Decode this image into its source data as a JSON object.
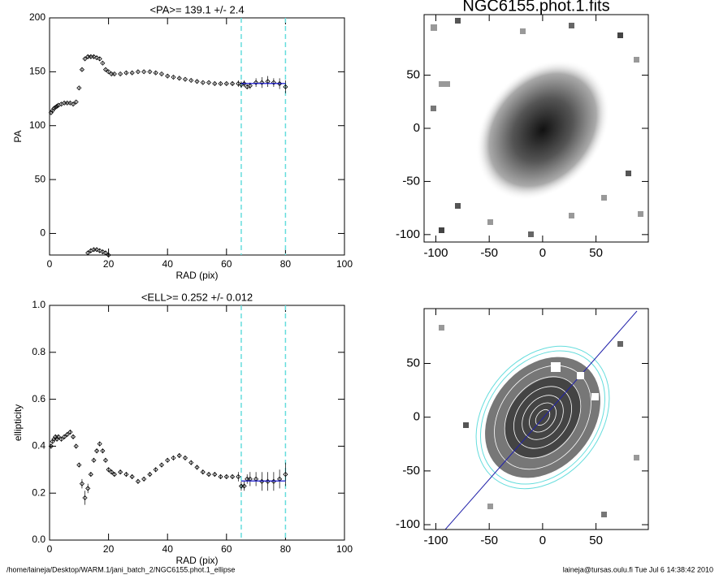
{
  "chart_data": [
    {
      "type": "profile",
      "title": "<PA>= 139.1 +/-   2.4",
      "x_label": "RAD (pix)",
      "y_label": "PA",
      "xlim": [
        0,
        100
      ],
      "ylim": [
        -20,
        200
      ],
      "xticks": [
        0,
        20,
        40,
        60,
        80,
        100
      ],
      "yticks": [
        0,
        50,
        100,
        150,
        200
      ],
      "series": [
        {
          "color": "#000000",
          "x": [
            0.5,
            1,
            1.5,
            2,
            2.5,
            3,
            4,
            5,
            6,
            7,
            8,
            9,
            10,
            11,
            12,
            13,
            14,
            15,
            16,
            17,
            18,
            19,
            20,
            21,
            22,
            24,
            26,
            28,
            30,
            32,
            34,
            36,
            38,
            40,
            42,
            44,
            46,
            48,
            50,
            52,
            54,
            56,
            58,
            60,
            62,
            64,
            65,
            66,
            67,
            68,
            70,
            72,
            74,
            76,
            78,
            80
          ],
          "values": [
            112,
            114,
            116,
            117,
            118,
            119,
            120,
            121,
            121,
            121,
            120,
            122,
            135,
            152,
            162,
            164,
            164,
            164,
            163,
            162,
            158,
            152,
            150,
            148,
            148,
            148,
            149,
            149,
            150,
            150,
            150,
            149,
            148,
            146,
            145,
            144,
            143,
            142,
            141,
            140,
            140,
            139,
            139,
            139,
            139,
            139,
            138,
            139,
            136,
            137,
            140,
            140,
            141,
            140,
            139,
            136
          ],
          "errors": [
            1,
            1,
            1,
            1,
            1,
            1,
            1,
            1,
            1,
            1,
            1,
            1,
            1,
            1,
            1,
            2,
            2,
            2,
            2,
            2,
            1,
            1,
            1,
            1,
            1,
            1,
            1,
            1,
            1,
            1,
            1,
            1,
            1,
            1,
            1,
            1,
            1,
            1,
            1,
            1,
            1,
            1,
            1,
            1,
            2,
            3,
            3,
            3,
            2,
            3,
            4,
            5,
            5,
            4,
            5,
            6
          ]
        },
        {
          "color": "#000000",
          "x": [
            13,
            14,
            15,
            16,
            17,
            18,
            19,
            20
          ],
          "values": [
            -18,
            -16,
            -15,
            -15,
            -16,
            -17,
            -18,
            -20
          ],
          "errors": [
            2,
            2,
            2,
            2,
            2,
            2,
            2,
            2
          ]
        }
      ],
      "fit_range": [
        65,
        80
      ],
      "fit_value": 139.1,
      "fit_color": "#0000cc",
      "range_color": "#66dddd"
    },
    {
      "type": "profile",
      "title": "<ELL>= 0.252 +/-  0.012",
      "x_label": "RAD (pix)",
      "y_label": "ellipticity",
      "xlim": [
        0,
        100
      ],
      "ylim": [
        0,
        1
      ],
      "xticks": [
        0,
        20,
        40,
        60,
        80,
        100
      ],
      "yticks": [
        {
          "value": 0,
          "label": "0.0"
        },
        0.2,
        0.4,
        0.6,
        0.8,
        {
          "value": 1,
          "label": "1.0"
        }
      ],
      "series": [
        {
          "color": "#000000",
          "x": [
            0.5,
            1,
            1.5,
            2,
            2.5,
            3,
            4,
            5,
            6,
            7,
            8,
            9,
            10,
            11,
            12,
            13,
            14,
            15,
            16,
            17,
            18,
            19,
            20,
            21,
            22,
            24,
            26,
            28,
            30,
            32,
            34,
            36,
            38,
            40,
            42,
            44,
            46,
            48,
            50,
            52,
            54,
            56,
            58,
            60,
            62,
            64,
            65,
            66,
            67,
            68,
            70,
            72,
            74,
            76,
            78,
            80
          ],
          "values": [
            0.4,
            0.42,
            0.43,
            0.44,
            0.43,
            0.44,
            0.43,
            0.44,
            0.45,
            0.46,
            0.44,
            0.4,
            0.32,
            0.24,
            0.18,
            0.22,
            0.28,
            0.34,
            0.38,
            0.41,
            0.38,
            0.34,
            0.3,
            0.29,
            0.28,
            0.29,
            0.28,
            0.27,
            0.25,
            0.26,
            0.28,
            0.3,
            0.32,
            0.34,
            0.35,
            0.36,
            0.35,
            0.33,
            0.31,
            0.29,
            0.28,
            0.28,
            0.27,
            0.27,
            0.27,
            0.27,
            0.23,
            0.23,
            0.26,
            0.26,
            0.26,
            0.25,
            0.25,
            0.25,
            0.26,
            0.28
          ],
          "errors": [
            0.01,
            0.01,
            0.01,
            0.01,
            0.01,
            0.01,
            0.01,
            0.01,
            0.01,
            0.01,
            0.01,
            0.01,
            0.01,
            0.02,
            0.03,
            0.02,
            0.01,
            0.01,
            0.01,
            0.01,
            0.01,
            0.01,
            0.01,
            0.01,
            0.01,
            0.01,
            0.01,
            0.01,
            0.01,
            0.01,
            0.01,
            0.01,
            0.01,
            0.01,
            0.01,
            0.01,
            0.01,
            0.01,
            0.01,
            0.01,
            0.01,
            0.01,
            0.01,
            0.01,
            0.01,
            0.02,
            0.02,
            0.02,
            0.02,
            0.03,
            0.03,
            0.04,
            0.04,
            0.04,
            0.04,
            0.05
          ]
        }
      ],
      "fit_range": [
        65,
        80
      ],
      "fit_value": 0.252,
      "fit_color": "#0000cc",
      "range_color": "#66dddd"
    },
    {
      "type": "image",
      "title": "NGC6155.phot.1.fits",
      "xlim": [
        -111,
        99
      ],
      "ylim": [
        -107,
        107
      ],
      "xticks": [
        -100,
        -50,
        0,
        50
      ],
      "yticks": [
        -100,
        -50,
        0,
        50
      ]
    },
    {
      "type": "image",
      "xlim": [
        -111,
        99
      ],
      "ylim": [
        -104.5,
        101
      ],
      "xticks": [
        -100,
        -50,
        0,
        50
      ],
      "yticks": [
        -100,
        -50,
        0,
        50
      ]
    }
  ],
  "footer": {
    "path": "/home/laineja/Desktop/WARM.1/jani_batch_2/NGC6155.phot.1_ellipse",
    "stamp": "laineja@tursas.oulu.fi  Tue Jul  6 14:38:42 2010"
  }
}
